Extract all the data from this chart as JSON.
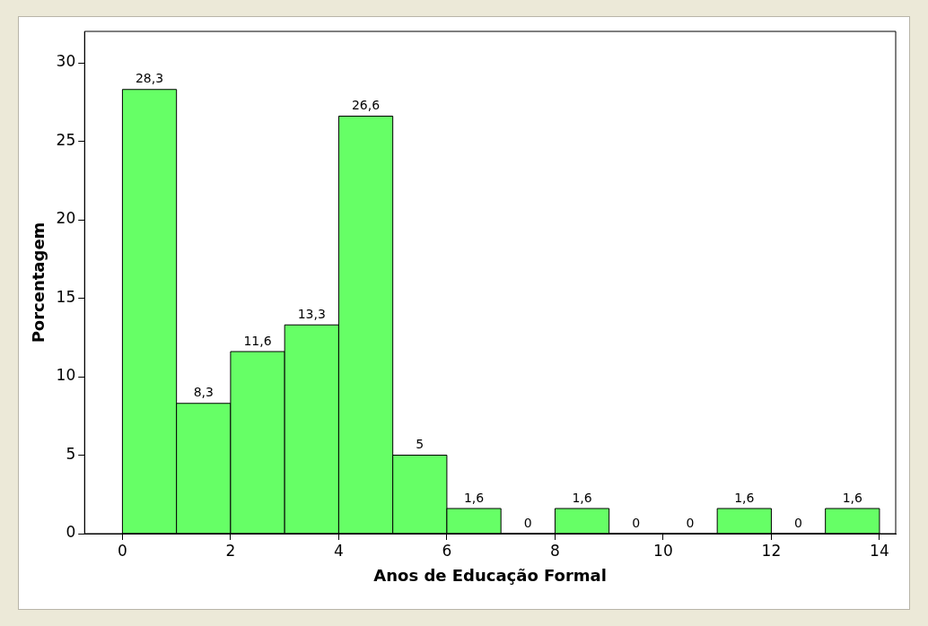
{
  "chart_data": {
    "type": "histogram",
    "xlabel": "Anos de Educação Formal",
    "ylabel": "Porcentagem",
    "bins": [
      0,
      1,
      2,
      3,
      4,
      5,
      6,
      7,
      8,
      9,
      10,
      11,
      12,
      13,
      14
    ],
    "values": [
      28.3,
      8.3,
      11.6,
      13.3,
      26.6,
      5,
      1.6,
      0,
      1.6,
      0,
      0,
      1.6,
      0,
      1.6
    ],
    "value_labels": [
      "28,3",
      "8,3",
      "11,6",
      "13,3",
      "26,6",
      "5",
      "1,6",
      "0",
      "1,6",
      "0",
      "0",
      "1,6",
      "0",
      "1,6"
    ],
    "color": "#66ff66",
    "xlim": [
      -0.7,
      14.3
    ],
    "xticks": [
      0,
      2,
      4,
      6,
      8,
      10,
      12,
      14
    ],
    "ylim": [
      0,
      32
    ],
    "yticks": [
      0,
      5,
      10,
      15,
      20,
      25,
      30
    ],
    "grid": false,
    "legend": false
  }
}
